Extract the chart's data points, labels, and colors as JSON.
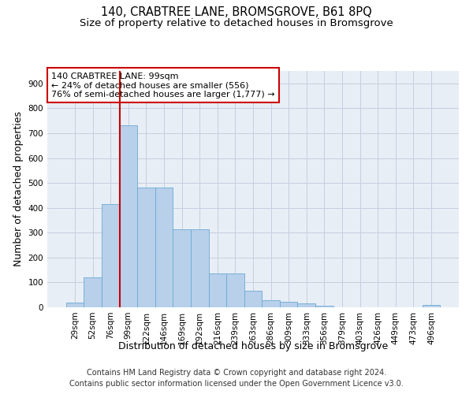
{
  "title": "140, CRABTREE LANE, BROMSGROVE, B61 8PQ",
  "subtitle": "Size of property relative to detached houses in Bromsgrove",
  "xlabel": "Distribution of detached houses by size in Bromsgrove",
  "ylabel": "Number of detached properties",
  "footer_line1": "Contains HM Land Registry data © Crown copyright and database right 2024.",
  "footer_line2": "Contains public sector information licensed under the Open Government Licence v3.0.",
  "annotation_line1": "140 CRABTREE LANE: 99sqm",
  "annotation_line2": "← 24% of detached houses are smaller (556)",
  "annotation_line3": "76% of semi-detached houses are larger (1,777) →",
  "bar_labels": [
    "29sqm",
    "52sqm",
    "76sqm",
    "99sqm",
    "122sqm",
    "146sqm",
    "169sqm",
    "192sqm",
    "216sqm",
    "239sqm",
    "263sqm",
    "286sqm",
    "309sqm",
    "333sqm",
    "356sqm",
    "379sqm",
    "403sqm",
    "426sqm",
    "449sqm",
    "473sqm",
    "496sqm"
  ],
  "bar_values": [
    18,
    120,
    415,
    730,
    480,
    480,
    315,
    315,
    135,
    135,
    65,
    28,
    22,
    15,
    5,
    0,
    0,
    0,
    0,
    0,
    8
  ],
  "bar_color": "#b8d0ea",
  "bar_edge_color": "#6aaad4",
  "vline_color": "#cc0000",
  "vline_bar_index": 3,
  "ylim": [
    0,
    950
  ],
  "yticks": [
    0,
    100,
    200,
    300,
    400,
    500,
    600,
    700,
    800,
    900
  ],
  "grid_color": "#c5cfe0",
  "background_color": "#e8eef5",
  "annotation_box_facecolor": "#ffffff",
  "annotation_box_edgecolor": "#cc0000",
  "title_fontsize": 10.5,
  "subtitle_fontsize": 9.5,
  "axis_label_fontsize": 9,
  "tick_fontsize": 7.5,
  "annotation_fontsize": 8,
  "footer_fontsize": 7
}
